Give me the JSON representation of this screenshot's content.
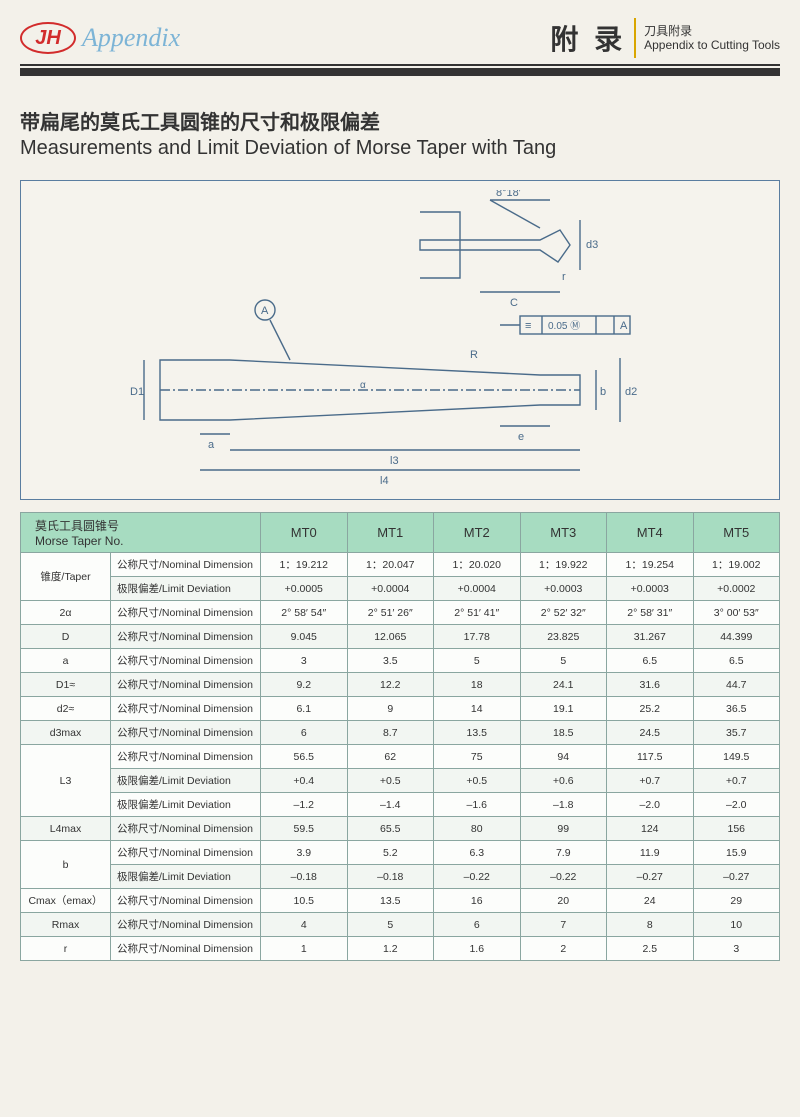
{
  "header": {
    "logo_text": "JH",
    "appendix_label": "Appendix",
    "right_cn": "附 录",
    "right_sub_cn": "刀具附录",
    "right_sub_en": "Appendix to Cutting Tools"
  },
  "title": {
    "cn": "带扁尾的莫氏工具圆锥的尺寸和极限偏差",
    "en": "Measurements and Limit Deviation of Morse Taper with Tang"
  },
  "diagram_caption": "[ Technical drawing of Morse taper with tang — labels: 8°18′, d3, C, r, A, R, D1, a, l3, l4, d2, b, e, 0.05 M A ]",
  "table": {
    "corner_cn": "莫氏工具圆锥号",
    "corner_en": "Morse Taper No.",
    "columns": [
      "MT0",
      "MT1",
      "MT2",
      "MT3",
      "MT4",
      "MT5"
    ],
    "labels": {
      "nominal": "公称尺寸/Nominal Dimension",
      "limit": "极限偏差/Limit Deviation"
    },
    "params": [
      {
        "name": "锥度/Taper",
        "rows": [
          {
            "type": "nominal",
            "vals": [
              "1：19.212",
              "1：20.047",
              "1：20.020",
              "1：19.922",
              "1：19.254",
              "1：19.002"
            ]
          },
          {
            "type": "limit",
            "vals": [
              "+0.0005",
              "+0.0004",
              "+0.0004",
              "+0.0003",
              "+0.0003",
              "+0.0002"
            ]
          }
        ]
      },
      {
        "name": "2α",
        "rows": [
          {
            "type": "nominal",
            "vals": [
              "2° 58′ 54″",
              "2° 51′ 26″",
              "2° 51′ 41″",
              "2° 52′ 32″",
              "2° 58′ 31″",
              "3° 00′ 53″"
            ]
          }
        ]
      },
      {
        "name": "D",
        "rows": [
          {
            "type": "nominal",
            "vals": [
              "9.045",
              "12.065",
              "17.78",
              "23.825",
              "31.267",
              "44.399"
            ]
          }
        ]
      },
      {
        "name": "a",
        "rows": [
          {
            "type": "nominal",
            "vals": [
              "3",
              "3.5",
              "5",
              "5",
              "6.5",
              "6.5"
            ]
          }
        ]
      },
      {
        "name": "D1≈",
        "rows": [
          {
            "type": "nominal",
            "vals": [
              "9.2",
              "12.2",
              "18",
              "24.1",
              "31.6",
              "44.7"
            ]
          }
        ]
      },
      {
        "name": "d2≈",
        "rows": [
          {
            "type": "nominal",
            "vals": [
              "6.1",
              "9",
              "14",
              "19.1",
              "25.2",
              "36.5"
            ]
          }
        ]
      },
      {
        "name": "d3max",
        "rows": [
          {
            "type": "nominal",
            "vals": [
              "6",
              "8.7",
              "13.5",
              "18.5",
              "24.5",
              "35.7"
            ]
          }
        ]
      },
      {
        "name": "L3",
        "rows": [
          {
            "type": "nominal",
            "vals": [
              "56.5",
              "62",
              "75",
              "94",
              "117.5",
              "149.5"
            ]
          },
          {
            "type": "limit",
            "vals": [
              "+0.4",
              "+0.5",
              "+0.5",
              "+0.6",
              "+0.7",
              "+0.7"
            ]
          },
          {
            "type": "limit",
            "vals": [
              "–1.2",
              "–1.4",
              "–1.6",
              "–1.8",
              "–2.0",
              "–2.0"
            ]
          }
        ]
      },
      {
        "name": "L4max",
        "rows": [
          {
            "type": "nominal",
            "vals": [
              "59.5",
              "65.5",
              "80",
              "99",
              "124",
              "156"
            ]
          }
        ]
      },
      {
        "name": "b",
        "rows": [
          {
            "type": "nominal",
            "vals": [
              "3.9",
              "5.2",
              "6.3",
              "7.9",
              "11.9",
              "15.9"
            ]
          },
          {
            "type": "limit",
            "vals": [
              "–0.18",
              "–0.18",
              "–0.22",
              "–0.22",
              "–0.27",
              "–0.27"
            ]
          }
        ]
      },
      {
        "name": "Cmax（emax）",
        "rows": [
          {
            "type": "nominal",
            "vals": [
              "10.5",
              "13.5",
              "16",
              "20",
              "24",
              "29"
            ]
          }
        ]
      },
      {
        "name": "Rmax",
        "rows": [
          {
            "type": "nominal",
            "vals": [
              "4",
              "5",
              "6",
              "7",
              "8",
              "10"
            ]
          }
        ]
      },
      {
        "name": "r",
        "rows": [
          {
            "type": "nominal",
            "vals": [
              "1",
              "1.2",
              "1.6",
              "2",
              "2.5",
              "3"
            ]
          }
        ]
      }
    ]
  }
}
